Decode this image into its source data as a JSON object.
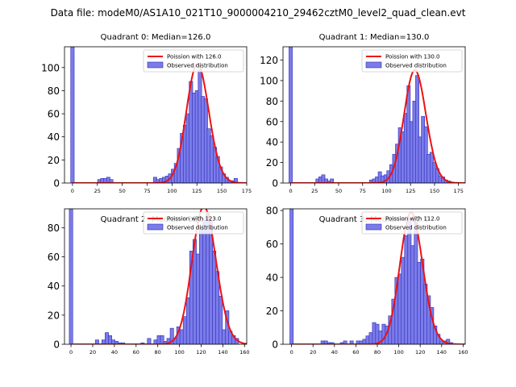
{
  "suptitle": "Data file: modeM0/AS1A10_021T10_9000004210_29462cztM0_level2_quad_clean.evt",
  "colors": {
    "bar_fill": "#7b7bea",
    "bar_edge": "#2c2cb4",
    "curve": "#ee1111"
  },
  "chart_data": [
    {
      "type": "bar",
      "title": "Quadrant 0: Median=126.0",
      "legend": [
        "Poission with 126.0",
        "Observed distribution"
      ],
      "legend_position": "top-right",
      "xlim": [
        -8,
        175
      ],
      "ylim": [
        0,
        118
      ],
      "xticks": [
        0,
        25,
        50,
        75,
        100,
        125,
        150,
        175
      ],
      "yticks": [
        0,
        20,
        40,
        60,
        80,
        100
      ],
      "lambda": 126,
      "bin_width": 3.5,
      "bins": [
        [
          0,
          118
        ],
        [
          27,
          3
        ],
        [
          30,
          4
        ],
        [
          33,
          4
        ],
        [
          36,
          5
        ],
        [
          39,
          3
        ],
        [
          83,
          5
        ],
        [
          86,
          3
        ],
        [
          89,
          4
        ],
        [
          92,
          5
        ],
        [
          95,
          6
        ],
        [
          98,
          8
        ],
        [
          101,
          12
        ],
        [
          104,
          17
        ],
        [
          107,
          30
        ],
        [
          110,
          43
        ],
        [
          113,
          50
        ],
        [
          116,
          60
        ],
        [
          119,
          88
        ],
        [
          122,
          78
        ],
        [
          125,
          80
        ],
        [
          128,
          98
        ],
        [
          131,
          75
        ],
        [
          134,
          73
        ],
        [
          137,
          47
        ],
        [
          140,
          41
        ],
        [
          143,
          31
        ],
        [
          146,
          23
        ],
        [
          149,
          14
        ],
        [
          152,
          8
        ],
        [
          155,
          5
        ],
        [
          158,
          2
        ],
        [
          161,
          2
        ],
        [
          164,
          4
        ]
      ]
    },
    {
      "type": "bar",
      "title": "Quadrant 1: Median=130.0",
      "legend": [
        "Poission with 130.0",
        "Observed distribution"
      ],
      "legend_position": "top-right",
      "xlim": [
        -8,
        182
      ],
      "ylim": [
        0,
        133
      ],
      "xticks": [
        0,
        25,
        50,
        75,
        100,
        125,
        150,
        175
      ],
      "yticks": [
        0,
        20,
        40,
        60,
        80,
        100,
        120
      ],
      "lambda": 130,
      "bin_width": 3.5,
      "bins": [
        [
          0,
          133
        ],
        [
          28,
          4
        ],
        [
          31,
          6
        ],
        [
          34,
          8
        ],
        [
          37,
          4
        ],
        [
          40,
          2
        ],
        [
          43,
          4
        ],
        [
          84,
          3
        ],
        [
          87,
          4
        ],
        [
          90,
          6
        ],
        [
          93,
          11
        ],
        [
          96,
          7
        ],
        [
          99,
          8
        ],
        [
          102,
          12
        ],
        [
          105,
          18
        ],
        [
          108,
          28
        ],
        [
          111,
          38
        ],
        [
          114,
          54
        ],
        [
          117,
          50
        ],
        [
          120,
          68
        ],
        [
          123,
          95
        ],
        [
          126,
          60
        ],
        [
          129,
          80
        ],
        [
          132,
          105
        ],
        [
          135,
          45
        ],
        [
          138,
          65
        ],
        [
          141,
          55
        ],
        [
          144,
          28
        ],
        [
          147,
          30
        ],
        [
          150,
          20
        ],
        [
          153,
          14
        ],
        [
          156,
          7
        ],
        [
          159,
          6
        ],
        [
          162,
          3
        ],
        [
          165,
          2
        ]
      ]
    },
    {
      "type": "bar",
      "title": "Quadrant 2: Median=123.0",
      "legend": [
        "Poission with 123.0",
        "Observed distribution"
      ],
      "legend_position": "top-right",
      "xlim": [
        -6,
        162
      ],
      "ylim": [
        0,
        93
      ],
      "xticks": [
        0,
        20,
        40,
        60,
        80,
        100,
        120,
        140,
        160
      ],
      "yticks": [
        0,
        20,
        40,
        60,
        80
      ],
      "lambda": 123,
      "bin_width": 3.2,
      "bins": [
        [
          0,
          93
        ],
        [
          24,
          3
        ],
        [
          30,
          3
        ],
        [
          33,
          8
        ],
        [
          36,
          6
        ],
        [
          39,
          3
        ],
        [
          42,
          2
        ],
        [
          45,
          1
        ],
        [
          48,
          1
        ],
        [
          66,
          1
        ],
        [
          72,
          4
        ],
        [
          78,
          3
        ],
        [
          81,
          6
        ],
        [
          84,
          6
        ],
        [
          87,
          2
        ],
        [
          90,
          4
        ],
        [
          93,
          11
        ],
        [
          96,
          4
        ],
        [
          99,
          12
        ],
        [
          102,
          10
        ],
        [
          105,
          19
        ],
        [
          108,
          32
        ],
        [
          111,
          64
        ],
        [
          114,
          72
        ],
        [
          117,
          62
        ],
        [
          120,
          80
        ],
        [
          123,
          86
        ],
        [
          126,
          90
        ],
        [
          129,
          85
        ],
        [
          132,
          64
        ],
        [
          135,
          50
        ],
        [
          138,
          33
        ],
        [
          141,
          10
        ],
        [
          144,
          23
        ],
        [
          147,
          9
        ],
        [
          150,
          6
        ],
        [
          153,
          4
        ]
      ]
    },
    {
      "type": "bar",
      "title": "Quadrant 3: Median=112.0",
      "legend": [
        "Poission with 112.0",
        "Observed distribution"
      ],
      "legend_position": "top-right",
      "xlim": [
        -8,
        162
      ],
      "ylim": [
        0,
        81
      ],
      "xticks": [
        0,
        20,
        40,
        60,
        80,
        100,
        120,
        140,
        160
      ],
      "yticks": [
        0,
        20,
        40,
        60,
        80
      ],
      "lambda": 112,
      "bin_width": 3.2,
      "bins": [
        [
          0,
          81
        ],
        [
          29,
          2
        ],
        [
          32,
          2
        ],
        [
          35,
          1
        ],
        [
          38,
          1
        ],
        [
          47,
          1
        ],
        [
          50,
          2
        ],
        [
          56,
          2
        ],
        [
          62,
          2
        ],
        [
          65,
          2
        ],
        [
          68,
          3
        ],
        [
          71,
          5
        ],
        [
          74,
          7
        ],
        [
          77,
          13
        ],
        [
          80,
          12
        ],
        [
          83,
          8
        ],
        [
          86,
          12
        ],
        [
          89,
          11
        ],
        [
          92,
          17
        ],
        [
          95,
          27
        ],
        [
          98,
          40
        ],
        [
          101,
          42
        ],
        [
          104,
          52
        ],
        [
          107,
          65
        ],
        [
          110,
          75
        ],
        [
          113,
          59
        ],
        [
          116,
          73
        ],
        [
          119,
          49
        ],
        [
          122,
          51
        ],
        [
          125,
          36
        ],
        [
          128,
          29
        ],
        [
          131,
          22
        ],
        [
          134,
          11
        ],
        [
          137,
          6
        ],
        [
          140,
          2
        ],
        [
          143,
          2
        ],
        [
          146,
          3
        ],
        [
          149,
          1
        ]
      ]
    }
  ]
}
